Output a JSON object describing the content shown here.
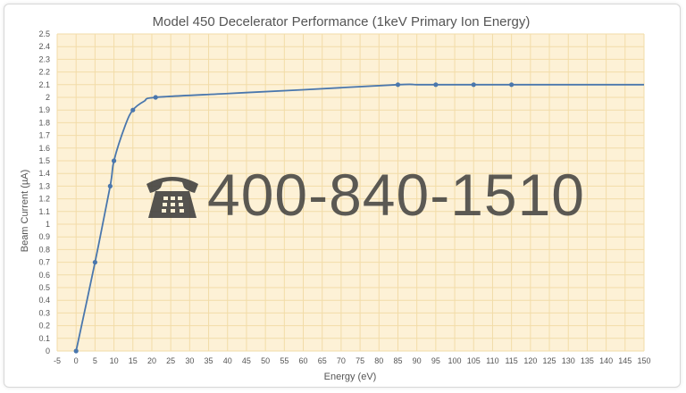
{
  "chart_data": {
    "type": "line",
    "title": "Model 450 Decelerator Performance (1keV Primary Ion  Energy)",
    "xlabel": "Energy (eV)",
    "ylabel": "Beam Current (µA)",
    "xlim": [
      -5,
      150
    ],
    "ylim": [
      0,
      2.5
    ],
    "x_step": 5,
    "y_step": 0.1,
    "grid": true,
    "plot_background": "#fdf1d6",
    "grid_color": "#f2dca8",
    "line_color": "#4a77ad",
    "series": [
      {
        "x": [
          0,
          5,
          9,
          10,
          15,
          21,
          85,
          95,
          105,
          115
        ],
        "values": [
          0,
          0.7,
          1.3,
          1.5,
          1.9,
          2.0,
          2.1,
          2.1,
          2.1,
          2.1
        ],
        "line_x": [
          0,
          5,
          9,
          10,
          13,
          15,
          18,
          21,
          40,
          60,
          85,
          90,
          95,
          105,
          115,
          150
        ],
        "line_y": [
          0,
          0.7,
          1.3,
          1.5,
          1.78,
          1.9,
          1.97,
          2.0,
          2.03,
          2.06,
          2.1,
          2.1,
          2.1,
          2.1,
          2.1,
          2.1
        ]
      }
    ]
  },
  "watermark": {
    "phone_icon": "telephone-icon",
    "text": "400-840-1510"
  }
}
